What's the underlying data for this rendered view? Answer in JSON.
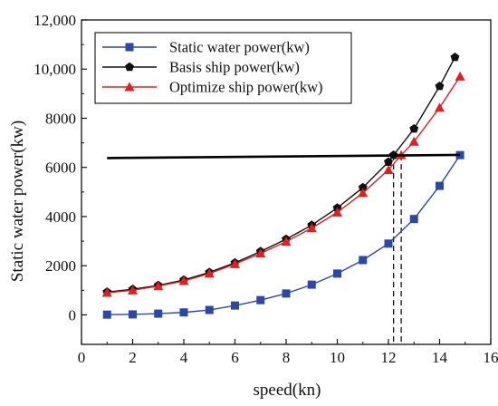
{
  "chart_data": {
    "type": "line",
    "xlabel": "speed(kn)",
    "ylabel": "Static water power(kw)",
    "xlim": [
      0,
      16
    ],
    "ylim": [
      -1200,
      12000
    ],
    "x_ticks": [
      0,
      2,
      4,
      6,
      8,
      10,
      12,
      14,
      16
    ],
    "x_tick_labels": [
      "0",
      "2",
      "4",
      "6",
      "8",
      "10",
      "12",
      "14",
      "16"
    ],
    "y_ticks": [
      0,
      2000,
      4000,
      6000,
      8000,
      10000,
      12000
    ],
    "y_tick_labels": [
      "0",
      "2000",
      "4000",
      "6000",
      "8000",
      "10,000",
      "12,000"
    ],
    "grid": false,
    "legend_position": "top-left",
    "series": [
      {
        "name": "Static water power(kw)",
        "color": "#2b47a8",
        "marker": "square",
        "x": [
          1,
          2,
          3,
          4,
          5,
          6,
          7,
          8,
          9,
          10,
          11,
          12,
          13,
          14,
          14.8
        ],
        "y": [
          10,
          20,
          50,
          100,
          200,
          380,
          600,
          870,
          1230,
          1680,
          2230,
          2900,
          3900,
          5250,
          6500
        ]
      },
      {
        "name": "Basis ship power(kw)",
        "color": "#111111",
        "marker": "pentagon",
        "x": [
          1,
          2,
          3,
          4,
          5,
          6,
          7,
          8,
          9,
          10,
          11,
          12,
          12.2,
          13,
          14,
          14.6
        ],
        "y": [
          930,
          1040,
          1200,
          1420,
          1730,
          2120,
          2580,
          3080,
          3650,
          4350,
          5180,
          6220,
          6500,
          7570,
          9300,
          10480
        ]
      },
      {
        "name": "Optimize ship power(kw)",
        "color": "#e02020",
        "marker": "triangle",
        "x": [
          1,
          2,
          3,
          4,
          5,
          6,
          7,
          8,
          9,
          10,
          11,
          12,
          12.5,
          13,
          14,
          14.8
        ],
        "y": [
          900,
          1000,
          1170,
          1380,
          1680,
          2070,
          2500,
          2980,
          3530,
          4170,
          4960,
          5900,
          6500,
          7050,
          8430,
          9700
        ]
      },
      {
        "name": "",
        "color": "#000000",
        "marker": "none",
        "x": [
          1,
          14.8
        ],
        "y": [
          6380,
          6510
        ]
      }
    ],
    "annotations": [
      {
        "type": "vertical-dashed",
        "x": 12.2,
        "y_top": 6500
      },
      {
        "type": "vertical-dashed",
        "x": 12.5,
        "y_top": 6500
      }
    ]
  }
}
